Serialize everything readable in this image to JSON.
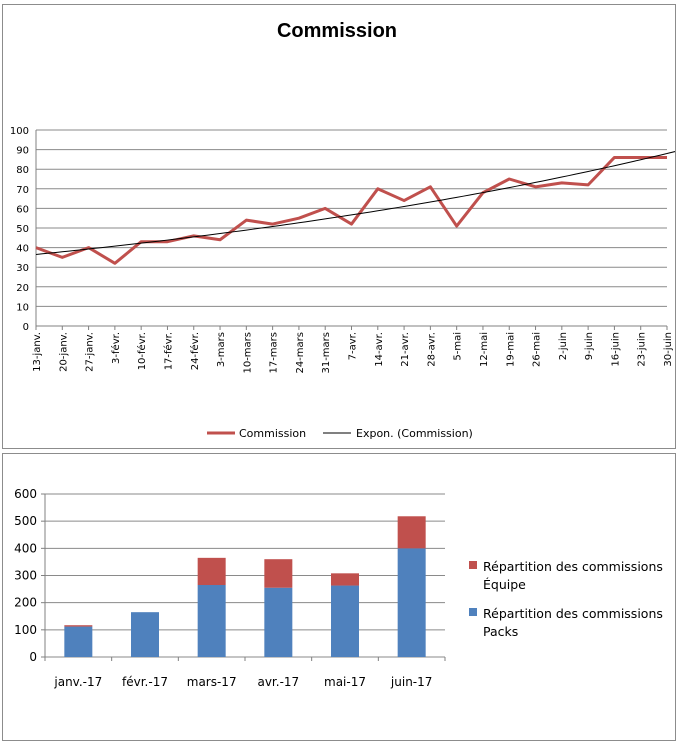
{
  "chart_data": [
    {
      "type": "line",
      "title": "Commission",
      "xlabel": "",
      "ylabel": "",
      "ylim": [
        0,
        100
      ],
      "yticks": [
        0,
        10,
        20,
        30,
        40,
        50,
        60,
        70,
        80,
        90,
        100
      ],
      "grid": true,
      "legend_position": "bottom",
      "categories": [
        "13-janv.",
        "20-janv.",
        "27-janv.",
        "3-févr.",
        "10-févr.",
        "17-févr.",
        "24-févr.",
        "3-mars",
        "10-mars",
        "17-mars",
        "24-mars",
        "31-mars",
        "7-avr.",
        "14-avr.",
        "21-avr.",
        "28-avr.",
        "5-mai",
        "12-mai",
        "19-mai",
        "26-mai",
        "2-juin",
        "9-juin",
        "16-juin",
        "23-juin",
        "30-juin"
      ],
      "series": [
        {
          "name": "Commission",
          "color": "#c0504d",
          "values": [
            40,
            35,
            40,
            32,
            43,
            43,
            46,
            44,
            54,
            52,
            55,
            60,
            52,
            70,
            64,
            71,
            51,
            68,
            75,
            71,
            73,
            72,
            86,
            86,
            86
          ]
        },
        {
          "name": "Expon. (Commission)",
          "color": "#000000",
          "trendline": "exponential",
          "start_value": 36.5,
          "end_value": 88
        }
      ]
    },
    {
      "type": "bar",
      "stacked": true,
      "title": "",
      "xlabel": "",
      "ylabel": "",
      "ylim": [
        0,
        600
      ],
      "yticks": [
        0,
        100,
        200,
        300,
        400,
        500,
        600
      ],
      "grid": true,
      "legend_position": "right",
      "categories": [
        "janv.-17",
        "févr.-17",
        "mars-17",
        "avr.-17",
        "mai-17",
        "juin-17"
      ],
      "series": [
        {
          "name": "Répartition des commissions Packs",
          "color": "#4f81bd",
          "values": [
            112,
            165,
            265,
            255,
            263,
            400
          ]
        },
        {
          "name": "Répartition des commissions Équipe",
          "color": "#c0504d",
          "values": [
            5,
            0,
            100,
            105,
            45,
            118
          ]
        }
      ]
    }
  ]
}
